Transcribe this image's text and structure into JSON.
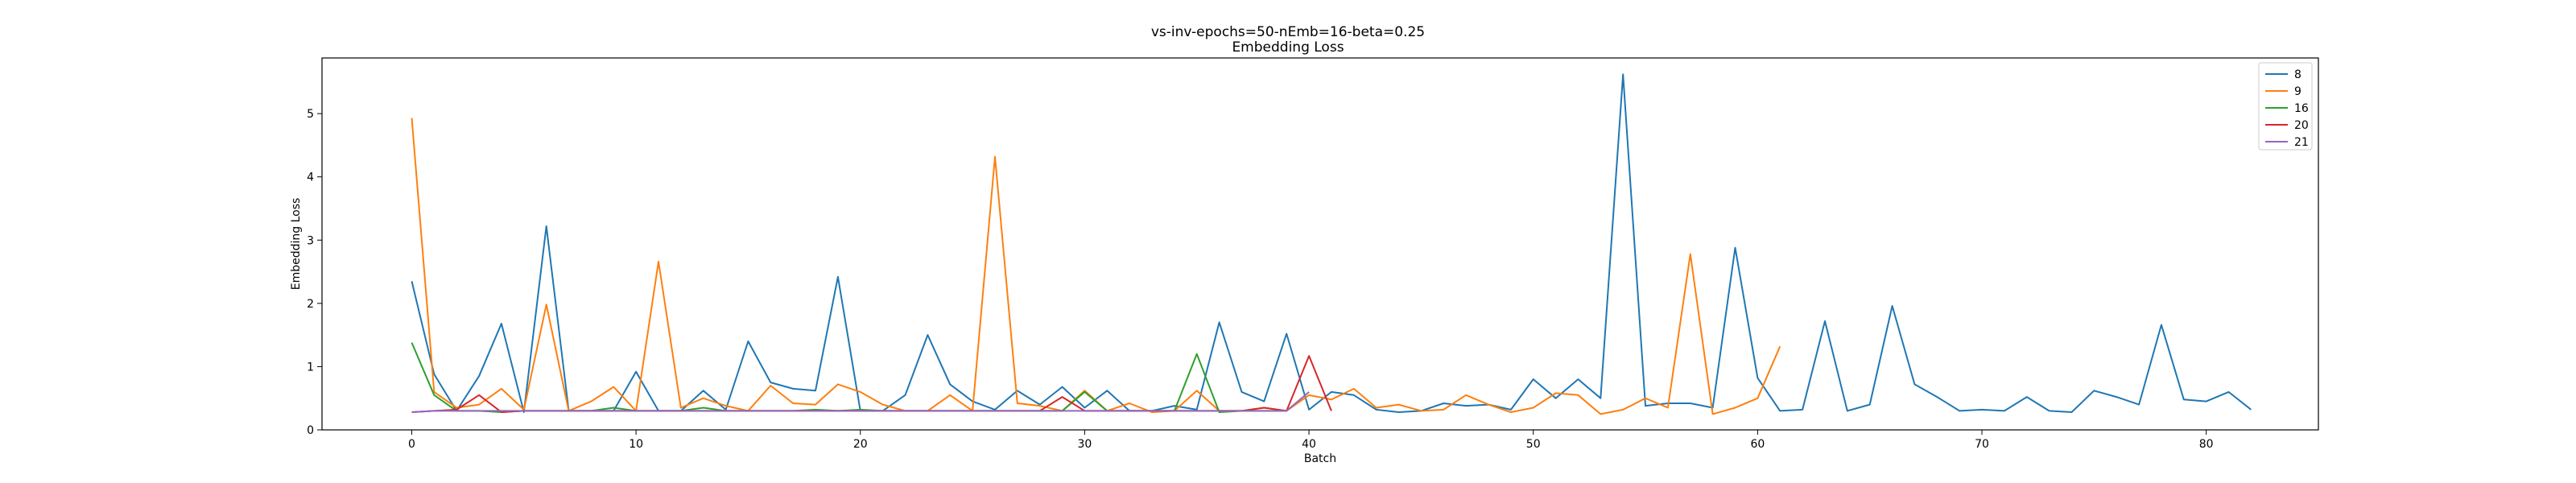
{
  "chart_data": {
    "type": "line",
    "title": "vs-inv-epochs=50-nEmb=16-beta=0.25",
    "subtitle": "Embedding Loss",
    "xlabel": "Batch",
    "ylabel": "Embedding Loss",
    "xlim": [
      -4,
      85
    ],
    "ylim": [
      0,
      5.88
    ],
    "xticks": [
      0,
      10,
      20,
      30,
      40,
      50,
      60,
      70,
      80
    ],
    "yticks": [
      0,
      1,
      2,
      3,
      4,
      5
    ],
    "grid": false,
    "legend_position": "top-right",
    "series": [
      {
        "name": "8",
        "color": "#1f77b4",
        "values": [
          2.35,
          0.88,
          0.3,
          0.85,
          1.68,
          0.28,
          3.22,
          0.3,
          0.3,
          0.3,
          0.92,
          0.3,
          0.3,
          0.62,
          0.32,
          1.4,
          0.75,
          0.65,
          0.62,
          2.42,
          0.3,
          0.3,
          0.55,
          1.5,
          0.72,
          0.45,
          0.32,
          0.62,
          0.4,
          0.68,
          0.35,
          0.62,
          0.3,
          0.3,
          0.38,
          0.32,
          1.7,
          0.6,
          0.45,
          1.52,
          0.32,
          0.6,
          0.55,
          0.32,
          0.28,
          0.3,
          0.42,
          0.38,
          0.4,
          0.32,
          0.8,
          0.5,
          0.8,
          0.5,
          5.62,
          0.38,
          0.42,
          0.42,
          0.35,
          2.88,
          0.82,
          0.3,
          0.32,
          1.72,
          0.3,
          0.4,
          1.96,
          0.72,
          0.52,
          0.3,
          0.32,
          0.3,
          0.52,
          0.3,
          0.28,
          0.62,
          0.52,
          0.4,
          1.66,
          0.48,
          0.45,
          0.6,
          0.32
        ]
      },
      {
        "name": "9",
        "color": "#ff7f0e",
        "values": [
          4.93,
          0.6,
          0.35,
          0.4,
          0.65,
          0.32,
          1.98,
          0.3,
          0.45,
          0.68,
          0.3,
          2.66,
          0.35,
          0.5,
          0.38,
          0.3,
          0.7,
          0.42,
          0.4,
          0.72,
          0.6,
          0.4,
          0.3,
          0.3,
          0.55,
          0.3,
          4.32,
          0.42,
          0.38,
          0.3,
          0.62,
          0.3,
          0.42,
          0.28,
          0.3,
          0.62,
          0.3,
          0.3,
          0.35,
          0.3,
          0.55,
          0.48,
          0.65,
          0.35,
          0.4,
          0.3,
          0.32,
          0.55,
          0.4,
          0.28,
          0.35,
          0.58,
          0.55,
          0.25,
          0.32,
          0.5,
          0.35,
          2.78,
          0.25,
          0.35,
          0.5,
          1.32
        ]
      },
      {
        "name": "16",
        "color": "#2ca02c",
        "values": [
          1.38,
          0.55,
          0.3,
          0.3,
          0.28,
          0.3,
          0.3,
          0.3,
          0.3,
          0.35,
          0.3,
          0.3,
          0.3,
          0.35,
          0.3,
          0.3,
          0.3,
          0.3,
          0.32,
          0.3,
          0.32,
          0.3,
          0.3,
          0.3,
          0.3,
          0.3,
          0.3,
          0.3,
          0.3,
          0.3,
          0.6,
          0.3,
          0.3,
          0.3,
          0.3,
          1.2,
          0.28,
          0.3,
          0.3,
          0.3
        ]
      },
      {
        "name": "20",
        "color": "#d62728",
        "values": [
          0.28,
          0.3,
          0.32,
          0.55,
          0.28,
          0.3,
          0.3,
          0.3,
          0.3,
          0.3,
          0.3,
          0.3,
          0.3,
          0.3,
          0.3,
          0.3,
          0.3,
          0.3,
          0.3,
          0.3,
          0.3,
          0.3,
          0.3,
          0.3,
          0.3,
          0.3,
          0.3,
          0.3,
          0.3,
          0.52,
          0.3,
          0.3,
          0.3,
          0.3,
          0.3,
          0.3,
          0.3,
          0.3,
          0.35,
          0.3,
          1.17,
          0.3
        ]
      },
      {
        "name": "21",
        "color": "#9467bd",
        "values": [
          0.28,
          0.3,
          0.3,
          0.3,
          0.3,
          0.3,
          0.3,
          0.3,
          0.3,
          0.3,
          0.3,
          0.3,
          0.3,
          0.3,
          0.3,
          0.3,
          0.3,
          0.3,
          0.3,
          0.3,
          0.3,
          0.3,
          0.3,
          0.3,
          0.3,
          0.3,
          0.3,
          0.3,
          0.3,
          0.3,
          0.3,
          0.3,
          0.3,
          0.3,
          0.3,
          0.3,
          0.3,
          0.3,
          0.3,
          0.3,
          0.6
        ]
      }
    ]
  }
}
